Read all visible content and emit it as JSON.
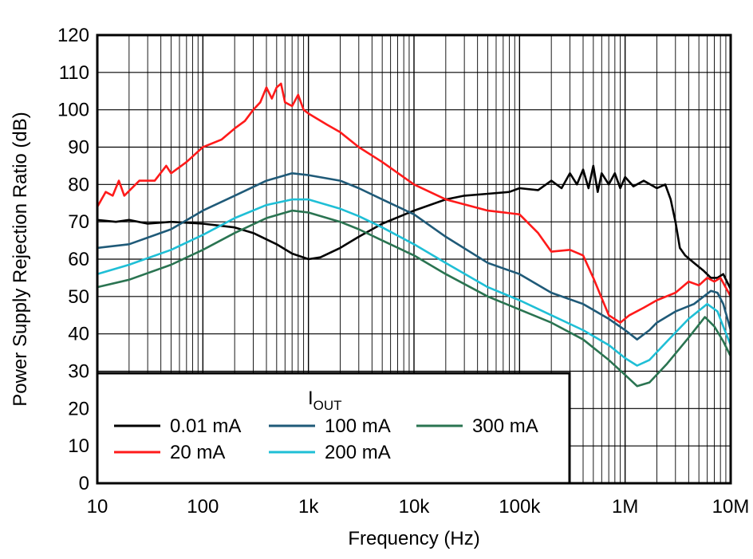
{
  "chart_data": {
    "type": "line",
    "xlabel": "Frequency (Hz)",
    "ylabel": "Power Supply Rejection Ratio (dB)",
    "x_scale": "log",
    "xlim": [
      10,
      10000000
    ],
    "ylim": [
      0,
      120
    ],
    "grid": true,
    "legend_placement": "bottom-left",
    "legend_title": {
      "main": "I",
      "sub": "OUT"
    },
    "x_ticks": [
      {
        "value": 10,
        "label": "10"
      },
      {
        "value": 100,
        "label": "100"
      },
      {
        "value": 1000,
        "label": "1k"
      },
      {
        "value": 10000,
        "label": "10k"
      },
      {
        "value": 100000,
        "label": "100k"
      },
      {
        "value": 1000000,
        "label": "1M"
      },
      {
        "value": 10000000,
        "label": "10M"
      }
    ],
    "y_ticks": [
      0,
      10,
      20,
      30,
      40,
      50,
      60,
      70,
      80,
      90,
      100,
      110,
      120
    ],
    "series": [
      {
        "name": "0.01 mA",
        "color": "#000000",
        "points": [
          [
            10,
            70.5
          ],
          [
            15,
            70
          ],
          [
            20,
            70.5
          ],
          [
            30,
            69.5
          ],
          [
            50,
            70
          ],
          [
            100,
            69.5
          ],
          [
            200,
            68.5
          ],
          [
            300,
            67
          ],
          [
            500,
            64
          ],
          [
            700,
            61.5
          ],
          [
            1000,
            60
          ],
          [
            1300,
            60.5
          ],
          [
            2000,
            63
          ],
          [
            3000,
            66
          ],
          [
            5000,
            69.5
          ],
          [
            10000,
            73
          ],
          [
            20000,
            76
          ],
          [
            30000,
            77
          ],
          [
            50000,
            77.5
          ],
          [
            80000,
            78
          ],
          [
            100000,
            79
          ],
          [
            150000,
            78.5
          ],
          [
            200000,
            81
          ],
          [
            250000,
            79
          ],
          [
            300000,
            83
          ],
          [
            350000,
            80
          ],
          [
            400000,
            84
          ],
          [
            450000,
            79
          ],
          [
            500000,
            85
          ],
          [
            550000,
            78
          ],
          [
            600000,
            83
          ],
          [
            700000,
            80
          ],
          [
            800000,
            83
          ],
          [
            900000,
            79
          ],
          [
            1000000,
            82
          ],
          [
            1200000,
            79.5
          ],
          [
            1500000,
            81
          ],
          [
            2000000,
            79
          ],
          [
            2400000,
            80
          ],
          [
            2700000,
            76
          ],
          [
            3000000,
            70
          ],
          [
            3300000,
            63
          ],
          [
            3700000,
            61
          ],
          [
            4500000,
            59
          ],
          [
            5500000,
            57
          ],
          [
            6500000,
            55
          ],
          [
            7500000,
            55
          ],
          [
            8500000,
            56
          ],
          [
            10000000,
            52
          ]
        ]
      },
      {
        "name": "20 mA",
        "color": "#ff1a1a",
        "points": [
          [
            10,
            74
          ],
          [
            12,
            78
          ],
          [
            14,
            77
          ],
          [
            16,
            81
          ],
          [
            18,
            77
          ],
          [
            25,
            81
          ],
          [
            35,
            81
          ],
          [
            45,
            85
          ],
          [
            50,
            83
          ],
          [
            70,
            86
          ],
          [
            100,
            90
          ],
          [
            150,
            92
          ],
          [
            200,
            95
          ],
          [
            250,
            97
          ],
          [
            300,
            100
          ],
          [
            350,
            102
          ],
          [
            400,
            106
          ],
          [
            450,
            103
          ],
          [
            500,
            106
          ],
          [
            550,
            107
          ],
          [
            600,
            102
          ],
          [
            700,
            101
          ],
          [
            800,
            104
          ],
          [
            900,
            100
          ],
          [
            1000,
            99
          ],
          [
            1500,
            96
          ],
          [
            2000,
            94
          ],
          [
            3000,
            90
          ],
          [
            5000,
            86
          ],
          [
            10000,
            80
          ],
          [
            20000,
            76
          ],
          [
            50000,
            73
          ],
          [
            100000,
            72
          ],
          [
            150000,
            67
          ],
          [
            200000,
            62
          ],
          [
            300000,
            62.5
          ],
          [
            400000,
            61
          ],
          [
            500000,
            55
          ],
          [
            700000,
            45
          ],
          [
            900000,
            43
          ],
          [
            1100000,
            45
          ],
          [
            1500000,
            47
          ],
          [
            2000000,
            49
          ],
          [
            3000000,
            51
          ],
          [
            4000000,
            54
          ],
          [
            5000000,
            53
          ],
          [
            6000000,
            55
          ],
          [
            7000000,
            54
          ],
          [
            8000000,
            55
          ],
          [
            10000000,
            50
          ]
        ]
      },
      {
        "name": "100 mA",
        "color": "#1f5a78",
        "points": [
          [
            10,
            63
          ],
          [
            20,
            64
          ],
          [
            50,
            68
          ],
          [
            100,
            73
          ],
          [
            200,
            77
          ],
          [
            400,
            81
          ],
          [
            700,
            83
          ],
          [
            1000,
            82.5
          ],
          [
            2000,
            81
          ],
          [
            3000,
            79
          ],
          [
            5000,
            76
          ],
          [
            10000,
            72
          ],
          [
            20000,
            66
          ],
          [
            50000,
            59
          ],
          [
            100000,
            56
          ],
          [
            200000,
            51
          ],
          [
            400000,
            48
          ],
          [
            700000,
            44
          ],
          [
            1000000,
            41
          ],
          [
            1300000,
            38.5
          ],
          [
            1700000,
            41
          ],
          [
            2000000,
            43
          ],
          [
            3000000,
            46
          ],
          [
            4500000,
            48
          ],
          [
            6500000,
            51.5
          ],
          [
            7500000,
            51
          ],
          [
            8500000,
            48
          ],
          [
            10000000,
            41
          ]
        ]
      },
      {
        "name": "200 mA",
        "color": "#1fbfd6",
        "points": [
          [
            10,
            56
          ],
          [
            20,
            58.5
          ],
          [
            50,
            62.5
          ],
          [
            100,
            66.5
          ],
          [
            200,
            71
          ],
          [
            400,
            74.5
          ],
          [
            700,
            76
          ],
          [
            1000,
            76
          ],
          [
            2000,
            73.5
          ],
          [
            3000,
            71.5
          ],
          [
            5000,
            68.5
          ],
          [
            10000,
            64
          ],
          [
            20000,
            59
          ],
          [
            50000,
            52.5
          ],
          [
            100000,
            49
          ],
          [
            200000,
            45
          ],
          [
            400000,
            41
          ],
          [
            700000,
            37
          ],
          [
            1000000,
            33.5
          ],
          [
            1300000,
            31.5
          ],
          [
            1700000,
            33
          ],
          [
            2500000,
            38
          ],
          [
            4000000,
            44
          ],
          [
            6000000,
            48
          ],
          [
            7500000,
            46
          ],
          [
            8500000,
            42
          ],
          [
            10000000,
            37
          ]
        ]
      },
      {
        "name": "300 mA",
        "color": "#2a7451",
        "points": [
          [
            10,
            52.5
          ],
          [
            20,
            54.5
          ],
          [
            50,
            58.5
          ],
          [
            100,
            62.5
          ],
          [
            200,
            67
          ],
          [
            400,
            71
          ],
          [
            700,
            73
          ],
          [
            1000,
            72.5
          ],
          [
            2000,
            70
          ],
          [
            3000,
            68
          ],
          [
            5000,
            65
          ],
          [
            10000,
            61
          ],
          [
            20000,
            56
          ],
          [
            50000,
            50
          ],
          [
            100000,
            46.5
          ],
          [
            200000,
            43
          ],
          [
            400000,
            38.5
          ],
          [
            700000,
            33
          ],
          [
            1000000,
            29
          ],
          [
            1300000,
            26
          ],
          [
            1700000,
            27
          ],
          [
            2500000,
            32
          ],
          [
            4000000,
            39
          ],
          [
            5700000,
            44.5
          ],
          [
            7000000,
            42
          ],
          [
            8500000,
            38
          ],
          [
            10000000,
            34
          ]
        ]
      }
    ]
  }
}
